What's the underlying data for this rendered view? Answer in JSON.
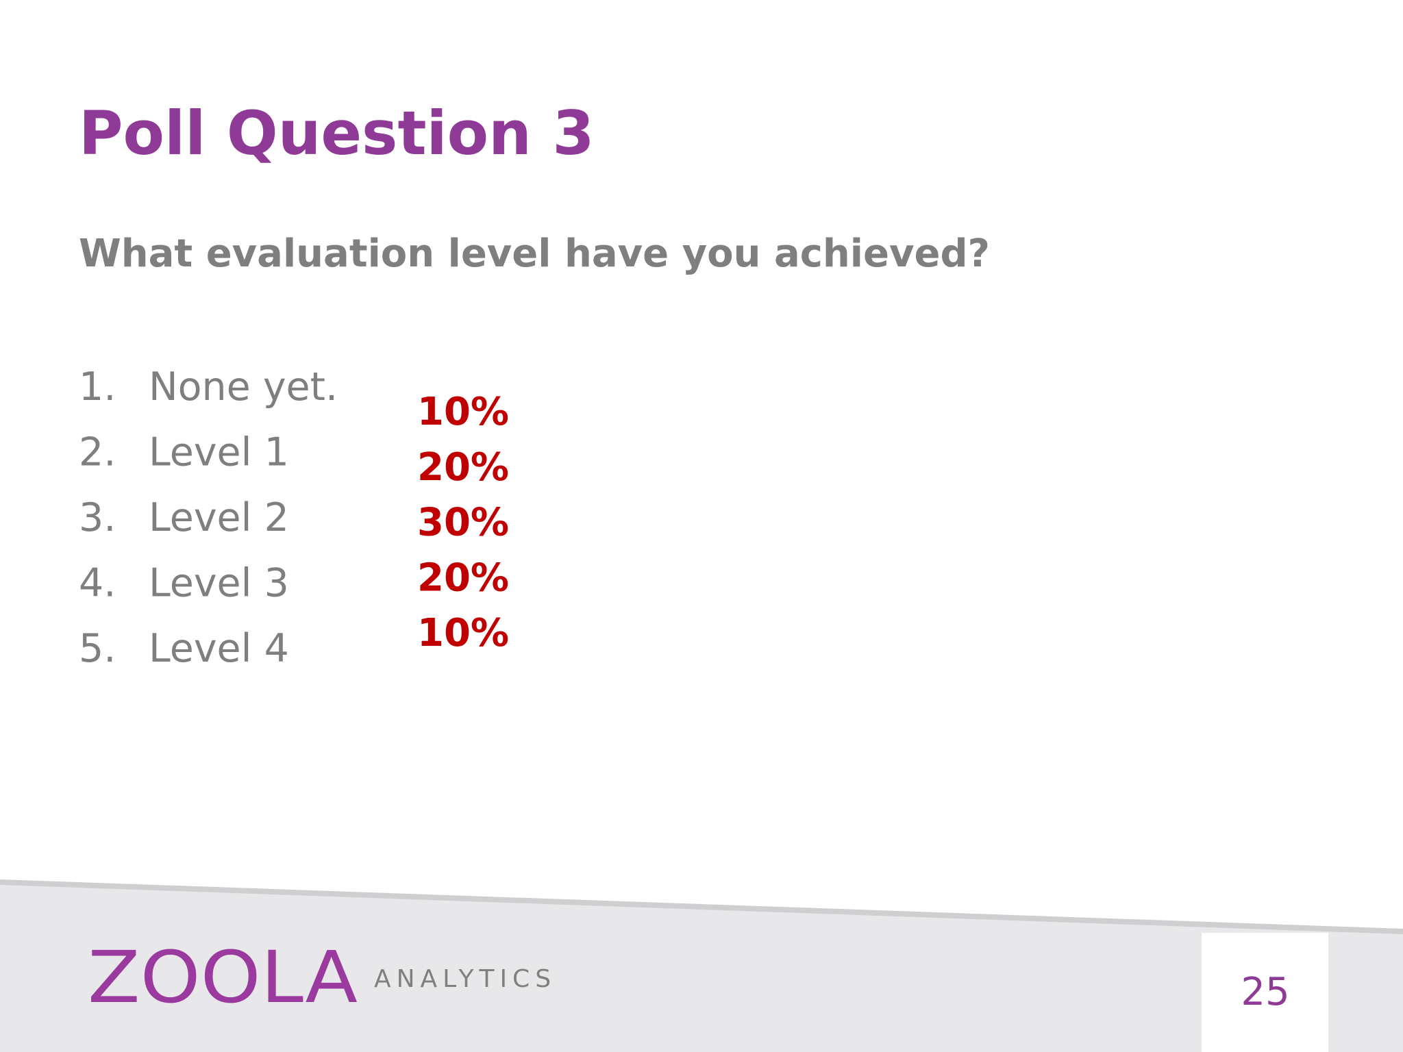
{
  "slide": {
    "title": "Poll Question 3",
    "question": "What evaluation level have you achieved?",
    "options": [
      {
        "number": "1.",
        "label": "None yet.",
        "result": "10%"
      },
      {
        "number": "2.",
        "label": "Level 1",
        "result": "20%"
      },
      {
        "number": "3.",
        "label": "Level 2",
        "result": "30%"
      },
      {
        "number": "4.",
        "label": "Level 3",
        "result": "20%"
      },
      {
        "number": "5.",
        "label": "Level 4",
        "result": "10%"
      }
    ],
    "footer": {
      "brand": "ZOOLA",
      "brand_suffix": "ANALYTICS",
      "page_number": "25"
    }
  }
}
